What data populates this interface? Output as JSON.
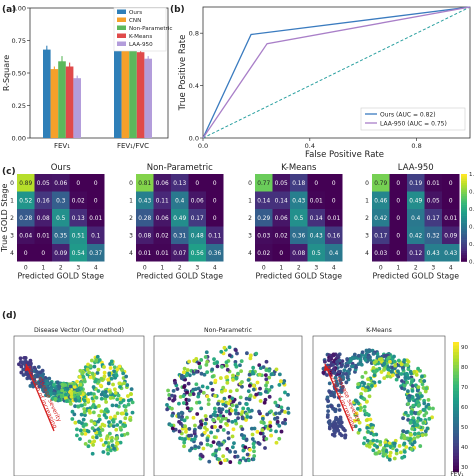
{
  "panels": {
    "a": "(a)",
    "b": "(b)",
    "c": "(c)",
    "d": "(d)"
  },
  "chart_data": [
    {
      "id": "a",
      "type": "bar",
      "ylabel": "R-Square",
      "ylim": [
        0,
        1.0
      ],
      "yticks": [
        0,
        0.25,
        0.5,
        0.75,
        1.0
      ],
      "categories": [
        "FEV₁",
        "FEV₁/FVC"
      ],
      "legend_position": "top-right",
      "series": [
        {
          "name": "Ours",
          "color": "#2f7fb8",
          "values": [
            0.68,
            0.76
          ],
          "err": [
            0.03,
            0.02
          ]
        },
        {
          "name": "CNN",
          "color": "#f5a02a",
          "values": [
            0.53,
            0.72
          ],
          "err": [
            0.02,
            0.02
          ]
        },
        {
          "name": "Non-Parametric",
          "color": "#5cb85c",
          "values": [
            0.59,
            0.69
          ],
          "err": [
            0.04,
            0.03
          ]
        },
        {
          "name": "K-Means",
          "color": "#e04a4a",
          "values": [
            0.55,
            0.66
          ],
          "err": [
            0.03,
            0.03
          ]
        },
        {
          "name": "LAA-950",
          "color": "#b39ddb",
          "values": [
            0.46,
            0.61
          ],
          "err": [
            0.02,
            0.02
          ]
        }
      ]
    },
    {
      "id": "b",
      "type": "line",
      "xlabel": "False Positive Rate",
      "ylabel": "True Positive Rate",
      "xlim": [
        0,
        1
      ],
      "ylim": [
        0,
        1
      ],
      "xticks": [
        "0.0",
        "0.4",
        "0.8"
      ],
      "yticks": [
        "0.0",
        "0.4",
        "0.8"
      ],
      "legend_position": "bottom-right",
      "series": [
        {
          "name": "Ours (AUC = 0.82)",
          "color": "#3a7bbf",
          "x": [
            0,
            0.18,
            1
          ],
          "y": [
            0,
            0.79,
            1
          ]
        },
        {
          "name": "LAA-950 (AUC = 0.75)",
          "color": "#a97fc8",
          "x": [
            0,
            0.24,
            1
          ],
          "y": [
            0,
            0.72,
            1
          ]
        }
      ],
      "diagonal_color": "#2aa0a0"
    },
    {
      "id": "c",
      "type": "heatmap",
      "xlabel": "Predicted GOLD Stage",
      "ylabel": "True GOLD Stage",
      "ticks": [
        "0",
        "1",
        "2",
        "3",
        "4"
      ],
      "colorbar_ticks": [
        "0.0",
        "0.2",
        "0.4",
        "0.6",
        "0.8",
        "1.0"
      ],
      "colormap": "viridis",
      "matrices": [
        {
          "title": "Ours",
          "values": [
            [
              "0.89",
              "0.05",
              "0.06",
              "0",
              "0"
            ],
            [
              "0.52",
              "0.16",
              "0.3",
              "0.02",
              "0"
            ],
            [
              "0.28",
              "0.08",
              "0.5",
              "0.13",
              "0.01"
            ],
            [
              "0.04",
              "0.01",
              "0.35",
              "0.51",
              "0.1"
            ],
            [
              "0",
              "0",
              "0.09",
              "0.54",
              "0.37"
            ]
          ]
        },
        {
          "title": "Non-Parametric",
          "values": [
            [
              "0.81",
              "0.06",
              "0.13",
              "0",
              "0"
            ],
            [
              "0.43",
              "0.11",
              "0.4",
              "0.06",
              "0"
            ],
            [
              "0.28",
              "0.06",
              "0.49",
              "0.17",
              "0"
            ],
            [
              "0.08",
              "0.02",
              "0.31",
              "0.48",
              "0.11"
            ],
            [
              "0.01",
              "0.01",
              "0.07",
              "0.56",
              "0.36"
            ]
          ]
        },
        {
          "title": "K-Means",
          "values": [
            [
              "0.77",
              "0.05",
              "0.18",
              "0",
              "0"
            ],
            [
              "0.14",
              "0.14",
              "0.43",
              "0.01",
              "0"
            ],
            [
              "0.29",
              "0.06",
              "0.5",
              "0.14",
              "0.01"
            ],
            [
              "0.03",
              "0.02",
              "0.36",
              "0.43",
              "0.16"
            ],
            [
              "0.02",
              "0",
              "0.08",
              "0.5",
              "0.4"
            ]
          ]
        },
        {
          "title": "LAA-950",
          "values": [
            [
              "0.79",
              "0",
              "0.19",
              "0.01",
              "0"
            ],
            [
              "0.46",
              "0",
              "0.49",
              "0.05",
              "0"
            ],
            [
              "0.42",
              "0",
              "0.4",
              "0.17",
              "0.01"
            ],
            [
              "0.17",
              "0",
              "0.42",
              "0.32",
              "0.09"
            ],
            [
              "0.03",
              "0",
              "0.12",
              "0.43",
              "0.43"
            ]
          ]
        }
      ]
    },
    {
      "id": "d",
      "type": "scatter",
      "colorbar_label": "FEV₁",
      "colorbar_ticks": [
        "30",
        "40",
        "50",
        "60",
        "70",
        "80",
        "90"
      ],
      "colormap": "viridis",
      "subplots": [
        {
          "title": "Disease Vector (Our method)",
          "annotation": [
            "Direction of increasing",
            "disease severity"
          ]
        },
        {
          "title": "Non-Parametric",
          "annotation": []
        },
        {
          "title": "K-Means",
          "annotation": [
            "Direction of increasing",
            "disease severity"
          ]
        }
      ]
    }
  ]
}
